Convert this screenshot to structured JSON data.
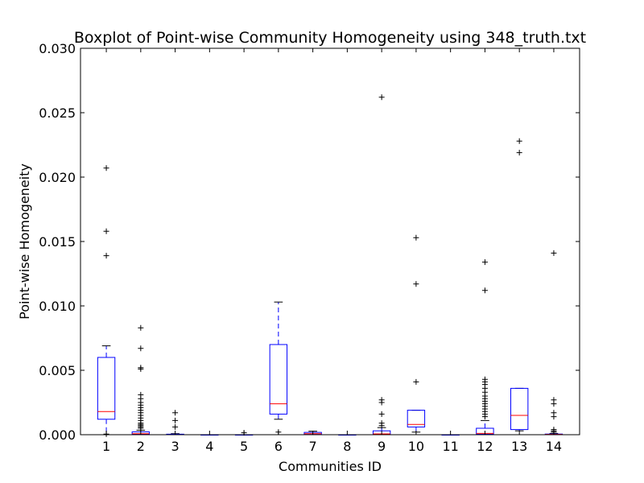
{
  "chart_data": {
    "type": "box",
    "title": "Boxplot of Point-wise Community Homogeneity using 348_truth.txt",
    "xlabel": "Communities ID",
    "ylabel": "Point-wise Homogeneity",
    "ylim": [
      0,
      0.03
    ],
    "yticks": [
      "0.000",
      "0.005",
      "0.010",
      "0.015",
      "0.020",
      "0.025",
      "0.030"
    ],
    "categories": [
      "1",
      "2",
      "3",
      "4",
      "5",
      "6",
      "7",
      "8",
      "9",
      "10",
      "11",
      "12",
      "13",
      "14"
    ],
    "boxes": [
      {
        "id": "1",
        "whislo": 0.0,
        "q1": 0.0012,
        "med": 0.0018,
        "q3": 0.006,
        "whishi": 0.0069,
        "fliers": [
          0.0139,
          0.0158,
          0.0207,
          5e-05
        ]
      },
      {
        "id": "2",
        "whislo": 0.0,
        "q1": 3e-05,
        "med": 8e-05,
        "q3": 0.00022,
        "whishi": 0.00035,
        "fliers": [
          0.0005,
          0.0006,
          0.0007,
          0.0008,
          0.0009,
          0.0011,
          0.0013,
          0.0015,
          0.0017,
          0.0019,
          0.0021,
          0.0023,
          0.0025,
          0.0028,
          0.0031,
          0.0051,
          0.0052,
          0.0067,
          0.0083
        ]
      },
      {
        "id": "3",
        "whislo": 0.0,
        "q1": 0.0,
        "med": 0.0,
        "q3": 4e-05,
        "whishi": 8e-05,
        "fliers": [
          0.0006,
          0.0011,
          0.0017
        ]
      },
      {
        "id": "4",
        "whislo": 0.0,
        "q1": 0.0,
        "med": 0.0,
        "q3": 0.0,
        "whishi": 0.0,
        "fliers": []
      },
      {
        "id": "5",
        "whislo": 0.0,
        "q1": 0.0,
        "med": 0.0,
        "q3": 0.0,
        "whishi": 0.0,
        "fliers": [
          0.00015
        ]
      },
      {
        "id": "6",
        "whislo": 0.0012,
        "q1": 0.0016,
        "med": 0.0024,
        "q3": 0.007,
        "whishi": 0.0103,
        "fliers": [
          0.0002
        ]
      },
      {
        "id": "7",
        "whislo": 0.0,
        "q1": 2e-05,
        "med": 8e-05,
        "q3": 0.00018,
        "whishi": 0.00027,
        "fliers": []
      },
      {
        "id": "8",
        "whislo": 0.0,
        "q1": 0.0,
        "med": 0.0,
        "q3": 0.0,
        "whishi": 0.0,
        "fliers": []
      },
      {
        "id": "9",
        "whislo": 0.0,
        "q1": 2e-05,
        "med": 6e-05,
        "q3": 0.0003,
        "whishi": 0.00055,
        "fliers": [
          0.0007,
          0.0009,
          0.0016,
          0.0025,
          0.0027,
          0.0262
        ]
      },
      {
        "id": "10",
        "whislo": 0.0002,
        "q1": 0.0006,
        "med": 0.0008,
        "q3": 0.0019,
        "whishi": 0.0019,
        "fliers": [
          0.0041,
          0.0117,
          0.0153
        ]
      },
      {
        "id": "11",
        "whislo": 0.0,
        "q1": 0.0,
        "med": 0.0,
        "q3": 0.0,
        "whishi": 0.0,
        "fliers": []
      },
      {
        "id": "12",
        "whislo": 0.0,
        "q1": 3e-05,
        "med": 0.0001,
        "q3": 0.0005,
        "whishi": 0.0011,
        "fliers": [
          0.0014,
          0.0016,
          0.0018,
          0.002,
          0.0022,
          0.0024,
          0.0026,
          0.0028,
          0.003,
          0.0033,
          0.0036,
          0.0039,
          0.0041,
          0.0043,
          0.0112,
          0.0134
        ]
      },
      {
        "id": "13",
        "whislo": 0.0003,
        "q1": 0.0004,
        "med": 0.0015,
        "q3": 0.0036,
        "whishi": 0.0036,
        "fliers": [
          0.0219,
          0.0228
        ]
      },
      {
        "id": "14",
        "whislo": 0.0,
        "q1": 0.0,
        "med": 2e-05,
        "q3": 5e-05,
        "whishi": 0.0001,
        "fliers": [
          0.0002,
          0.0003,
          0.0004,
          0.0014,
          0.0017,
          0.0024,
          0.0027,
          0.0141
        ]
      }
    ],
    "grid": false,
    "colors": {
      "box": "#0000ff",
      "median": "#ff0000",
      "flier": "#000000",
      "axes": "#000000"
    }
  }
}
